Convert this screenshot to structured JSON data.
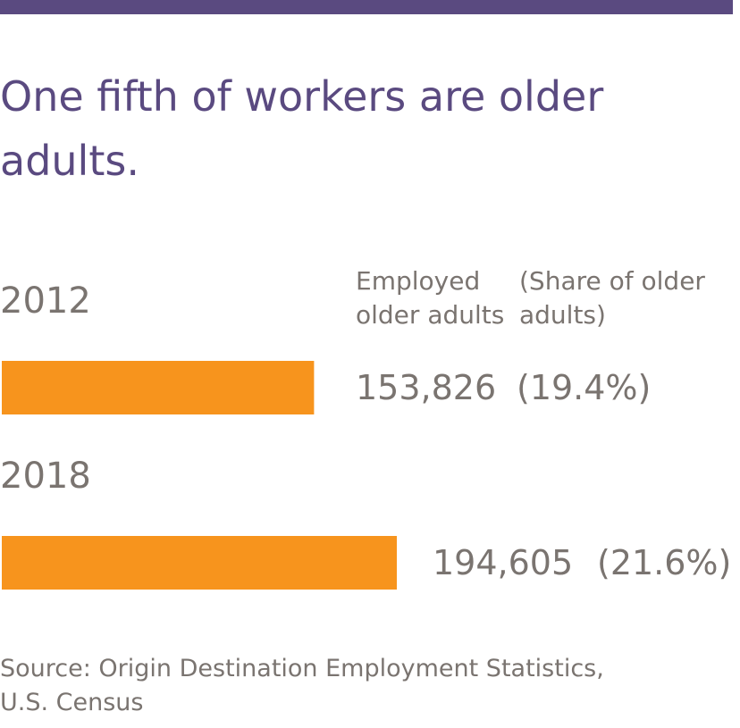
{
  "brand_colors": {
    "accent_bar": "#5a4a80",
    "title_text": "#5a4a80",
    "bar_fill": "#f7941d",
    "body_text": "#7a7470"
  },
  "title": "One fifth of workers are older adults.",
  "headers": {
    "employed": "Employed\nolder adults",
    "share": "(Share of older\nadults)"
  },
  "chart_data": {
    "type": "bar",
    "orientation": "horizontal",
    "categories": [
      "2012",
      "2018"
    ],
    "series": [
      {
        "values": [
          153826,
          194605
        ],
        "share_labels": [
          "(19.4%)",
          "(21.6%)"
        ]
      }
    ],
    "value_labels": [
      "153,826",
      "194,605"
    ],
    "title": "One fifth of workers are older adults.",
    "xlabel": "",
    "ylabel": "",
    "grid": false
  },
  "rows": [
    {
      "year": "2012",
      "employed": "153,826",
      "share": "(19.4%)"
    },
    {
      "year": "2018",
      "employed": "194,605",
      "share": "(21.6%)"
    }
  ],
  "source": "Source: Origin Destination Employment Statistics,\nU.S. Census"
}
